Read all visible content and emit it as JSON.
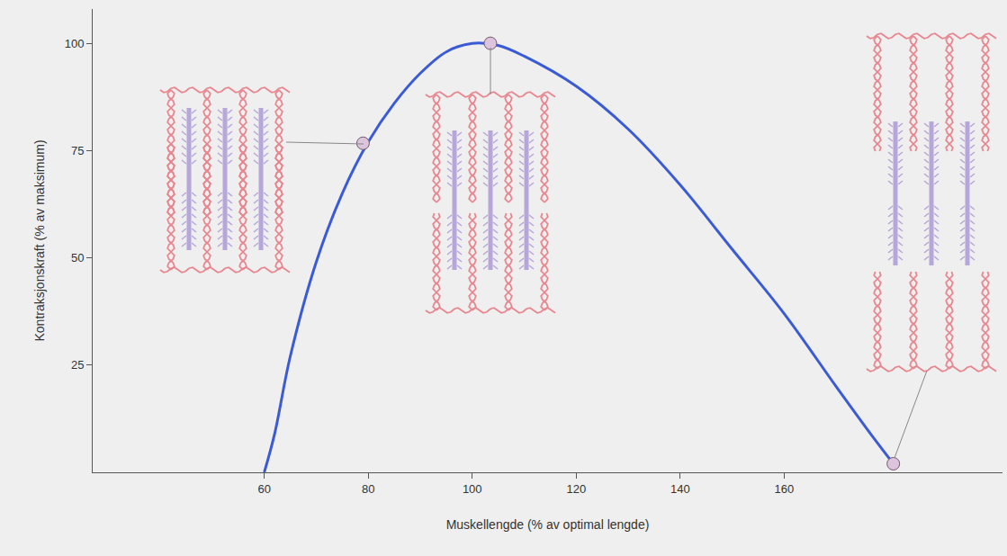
{
  "chart_data": {
    "type": "line",
    "x_label": "Muskellengde (% av optimal lengde)",
    "y_label": "Kontraksjonskraft (% av maksimum)",
    "x": [
      60,
      62,
      65,
      70,
      75,
      80,
      85,
      90,
      95,
      100,
      105,
      110,
      120,
      130,
      140,
      150,
      160,
      170,
      176,
      181
    ],
    "values": [
      0,
      9,
      27,
      49,
      65,
      77,
      86,
      93,
      98,
      100,
      99.5,
      97,
      90,
      80,
      67,
      52,
      37,
      20,
      10,
      2
    ],
    "color": "#3b5bd6",
    "line_style": "solid",
    "highlighted": {
      "x": [
        79,
        103.5,
        181
      ],
      "values": [
        76.7,
        100,
        2
      ],
      "color": "#dcc4dc",
      "marker": "circle"
    },
    "xlim": [
      27,
      202
    ],
    "xticks": [
      60,
      80,
      100,
      120,
      140,
      160
    ],
    "ylim": [
      0,
      108
    ],
    "yticks": [
      25,
      50,
      75,
      100
    ],
    "grid": false
  }
}
